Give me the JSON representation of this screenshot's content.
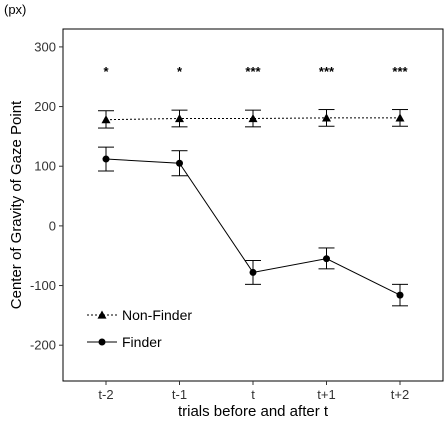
{
  "chart_data": {
    "type": "line",
    "title": "",
    "unit_label": "(px)",
    "xlabel": "trials before and after t",
    "ylabel": "Center of Gravity of Gaze Point",
    "categories": [
      "t-2",
      "t-1",
      "t",
      "t+1",
      "t+2"
    ],
    "ylim": [
      -260,
      330
    ],
    "yticks": [
      -200,
      -100,
      0,
      100,
      200,
      300
    ],
    "grid": false,
    "legend_position": "bottom-left",
    "significance": [
      "*",
      "*",
      "***",
      "***",
      "***"
    ],
    "series": [
      {
        "name": "Non-Finder",
        "marker": "triangle",
        "line_style": "dotted",
        "values": [
          178,
          180,
          180,
          181,
          181
        ],
        "err_upper": [
          193,
          194,
          194,
          195,
          195
        ],
        "err_lower": [
          164,
          166,
          166,
          167,
          167
        ]
      },
      {
        "name": "Finder",
        "marker": "circle",
        "line_style": "solid",
        "values": [
          112,
          105,
          -78,
          -55,
          -116
        ],
        "err_upper": [
          132,
          126,
          -58,
          -37,
          -98
        ],
        "err_lower": [
          92,
          84,
          -98,
          -72,
          -134
        ]
      }
    ]
  }
}
